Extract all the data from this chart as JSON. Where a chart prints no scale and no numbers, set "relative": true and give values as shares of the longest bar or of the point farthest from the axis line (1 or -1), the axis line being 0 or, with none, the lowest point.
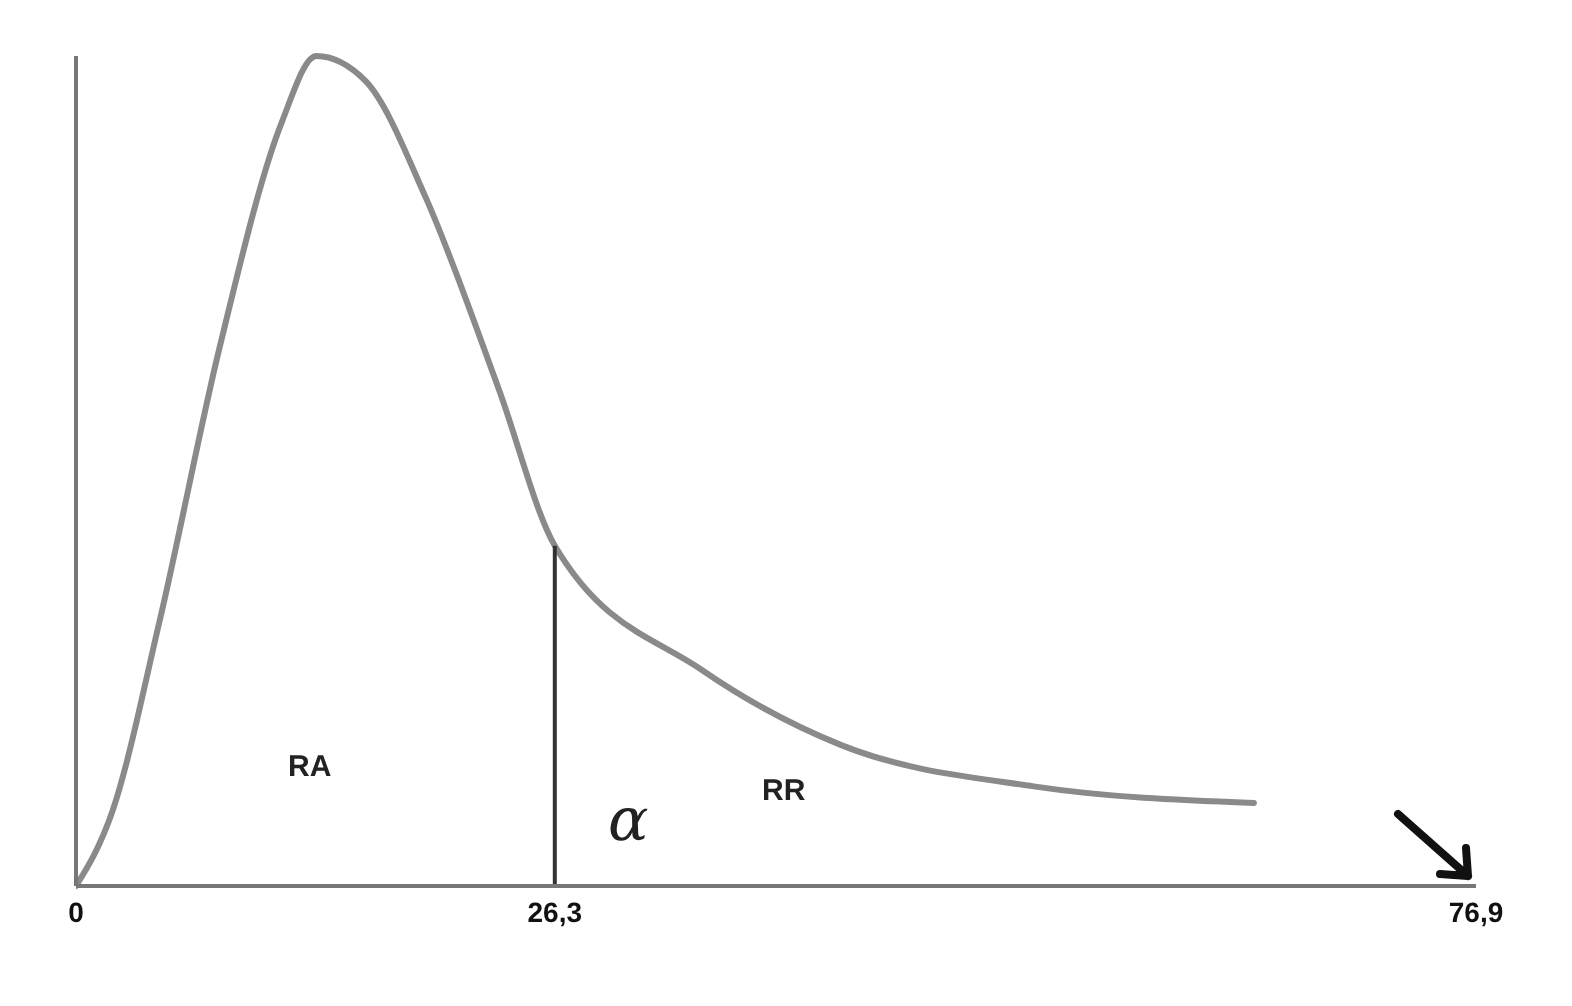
{
  "chart_data": {
    "type": "line",
    "relative": true,
    "tick_labels": "x",
    "marker": "none",
    "line_style": "solid",
    "x": [
      0,
      2.0,
      4.6,
      7.9,
      11.3,
      13.2,
      15.9,
      19.2,
      23.2,
      26.3,
      34.4,
      42.0,
      52.6,
      64.7
    ],
    "series": [
      {
        "color": "#8a8a8a",
        "values": [
          0,
          0.09,
          0.32,
          0.65,
          0.92,
          1,
          0.97,
          0.83,
          0.6,
          0.41,
          0.26,
          0.17,
          0.12,
          0.1
        ]
      }
    ],
    "xlim": [
      0,
      76.9
    ],
    "xticks": [
      0,
      {
        "value": 26.3,
        "label": "26,3"
      },
      {
        "value": 76.9,
        "label": "76,9"
      }
    ],
    "ref_lines": [
      {
        "axis": "x",
        "value": 26.3,
        "color": "#333333"
      }
    ],
    "annotations": [
      "RA",
      "α",
      "RR"
    ]
  }
}
